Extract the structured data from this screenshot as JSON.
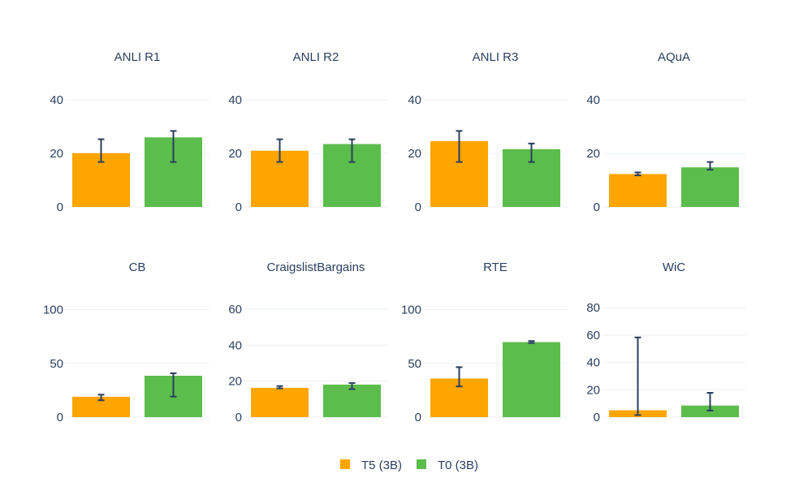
{
  "chart_data": {
    "type": "bar",
    "series": [
      {
        "name": "T5 (3B)",
        "color": "#FFA500"
      },
      {
        "name": "T0 (3B)",
        "color": "#5BBD4B"
      }
    ],
    "error_bar_color": "#2a3f5f",
    "grid": true,
    "legend_position": "bottom-center",
    "panels": [
      {
        "title": "ANLI R1",
        "ylim": [
          0,
          47
        ],
        "yticks": [
          0,
          20,
          40
        ],
        "bars": [
          {
            "value": 20.1,
            "err_low": 16.8,
            "err_high": 25.3
          },
          {
            "value": 26.0,
            "err_low": 16.8,
            "err_high": 28.4
          }
        ]
      },
      {
        "title": "ANLI R2",
        "ylim": [
          0,
          47
        ],
        "yticks": [
          0,
          20,
          40
        ],
        "bars": [
          {
            "value": 21.0,
            "err_low": 16.8,
            "err_high": 25.3
          },
          {
            "value": 23.5,
            "err_low": 16.8,
            "err_high": 25.3
          }
        ]
      },
      {
        "title": "ANLI R3",
        "ylim": [
          0,
          47
        ],
        "yticks": [
          0,
          20,
          40
        ],
        "bars": [
          {
            "value": 24.6,
            "err_low": 16.8,
            "err_high": 28.4
          },
          {
            "value": 21.6,
            "err_low": 16.8,
            "err_high": 23.7
          }
        ]
      },
      {
        "title": "AQuA",
        "ylim": [
          0,
          47
        ],
        "yticks": [
          0,
          20,
          40
        ],
        "bars": [
          {
            "value": 12.3,
            "err_low": 11.8,
            "err_high": 12.9
          },
          {
            "value": 14.8,
            "err_low": 13.9,
            "err_high": 16.8
          }
        ]
      },
      {
        "title": "CB",
        "ylim": [
          0,
          117
        ],
        "yticks": [
          0,
          50,
          100
        ],
        "bars": [
          {
            "value": 19.0,
            "err_low": 15.7,
            "err_high": 20.9
          },
          {
            "value": 38.5,
            "err_low": 19.1,
            "err_high": 40.8
          }
        ]
      },
      {
        "title": "CraigslistBargains",
        "ylim": [
          0,
          70
        ],
        "yticks": [
          0,
          20,
          40,
          60
        ],
        "bars": [
          {
            "value": 16.3,
            "err_low": 16.0,
            "err_high": 17.3
          },
          {
            "value": 18.1,
            "err_low": 15.6,
            "err_high": 19.0
          }
        ]
      },
      {
        "title": "RTE",
        "ylim": [
          0,
          117
        ],
        "yticks": [
          0,
          50,
          100
        ],
        "bars": [
          {
            "value": 35.9,
            "err_low": 28.6,
            "err_high": 46.5
          },
          {
            "value": 69.8,
            "err_low": 69.0,
            "err_high": 70.8
          }
        ]
      },
      {
        "title": "WiC",
        "ylim": [
          0,
          92
        ],
        "yticks": [
          0,
          20,
          40,
          60,
          80
        ],
        "bars": [
          {
            "value": 5.0,
            "err_low": 1.5,
            "err_high": 58.3
          },
          {
            "value": 8.5,
            "err_low": 4.8,
            "err_high": 17.8
          }
        ]
      }
    ]
  }
}
